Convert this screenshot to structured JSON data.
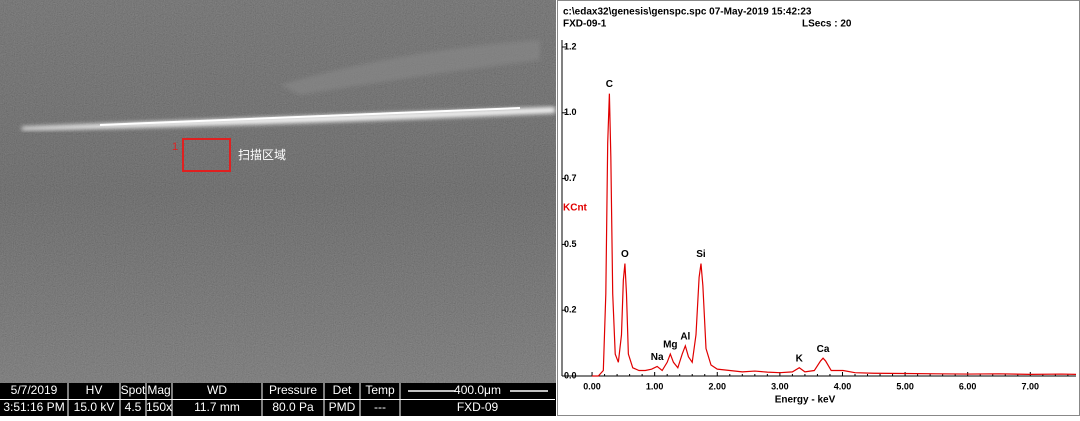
{
  "sem_image": {
    "annotation_number": "1",
    "annotation_label": "扫描区域",
    "info_bar": {
      "labels": [
        "5/7/2019",
        "HV",
        "Spot",
        "Mag",
        "WD",
        "Pressure",
        "Det",
        "Temp",
        "400.0μm"
      ],
      "values": [
        "3:51:16 PM",
        "15.0 kV",
        "4.5",
        "150x",
        "11.7 mm",
        "80.0 Pa",
        "PMD",
        "---",
        "FXD-09"
      ]
    }
  },
  "chart_data": {
    "type": "line",
    "header": [
      "c:\\edax32\\genesis\\genspc.spc  07-May-2019 15:42:23",
      "FXD-09-1",
      "LSecs : 20"
    ],
    "ylabel": "KCnt",
    "xlabel": "Energy - keV",
    "xlim": [
      -0.48,
      7.73
    ],
    "ylim": [
      0,
      1.2
    ],
    "xticks": [
      {
        "value": 0,
        "label": "0.00"
      },
      {
        "value": 1,
        "label": "1.00"
      },
      {
        "value": 2,
        "label": "2.00"
      },
      {
        "value": 3,
        "label": "3.00"
      },
      {
        "value": 4,
        "label": "4.00"
      },
      {
        "value": 5,
        "label": "5.00"
      },
      {
        "value": 6,
        "label": "6.00"
      },
      {
        "value": 7,
        "label": "7.00"
      }
    ],
    "yticks": [
      {
        "value": 0,
        "label": "0.0"
      },
      {
        "value": 0.24,
        "label": "0.2"
      },
      {
        "value": 0.48,
        "label": "0.5"
      },
      {
        "value": 0.72,
        "label": "0.7"
      },
      {
        "value": 0.96,
        "label": "1.0"
      },
      1.2
    ],
    "series": [
      {
        "color": "#e00000",
        "x": [
          0.0,
          0.1,
          0.18,
          0.22,
          0.25,
          0.277,
          0.3,
          0.33,
          0.37,
          0.42,
          0.47,
          0.5,
          0.525,
          0.55,
          0.58,
          0.65,
          0.75,
          0.85,
          0.95,
          1.04,
          1.12,
          1.2,
          1.25,
          1.3,
          1.37,
          1.44,
          1.49,
          1.54,
          1.6,
          1.66,
          1.71,
          1.74,
          1.77,
          1.82,
          1.9,
          2.0,
          2.2,
          2.4,
          2.6,
          2.8,
          3.0,
          3.2,
          3.31,
          3.4,
          3.55,
          3.65,
          3.69,
          3.73,
          3.82,
          4.01,
          4.2,
          4.5,
          5.0,
          5.5,
          6.0,
          6.5,
          7.0,
          7.5,
          7.73
        ],
        "values": [
          0.0,
          0.0,
          0.02,
          0.3,
          0.85,
          1.03,
          0.8,
          0.3,
          0.08,
          0.05,
          0.15,
          0.35,
          0.41,
          0.3,
          0.08,
          0.03,
          0.02,
          0.02,
          0.025,
          0.035,
          0.02,
          0.05,
          0.08,
          0.05,
          0.03,
          0.08,
          0.11,
          0.07,
          0.05,
          0.15,
          0.36,
          0.41,
          0.33,
          0.1,
          0.04,
          0.025,
          0.02,
          0.015,
          0.018,
          0.014,
          0.012,
          0.015,
          0.03,
          0.015,
          0.02,
          0.055,
          0.065,
          0.055,
          0.02,
          0.02,
          0.012,
          0.01,
          0.009,
          0.008,
          0.007,
          0.008,
          0.006,
          0.007,
          0.006
        ]
      }
    ],
    "peak_labels": [
      {
        "label": "C",
        "x": 0.277
      },
      {
        "label": "O",
        "x": 0.525
      },
      {
        "label": "Na",
        "x": 1.04
      },
      {
        "label": "Mg",
        "x": 1.25
      },
      {
        "label": "Al",
        "x": 1.49
      },
      {
        "label": "Si",
        "x": 1.74
      },
      {
        "label": "K",
        "x": 3.31
      },
      {
        "label": "Ca",
        "x": 3.69
      }
    ]
  }
}
